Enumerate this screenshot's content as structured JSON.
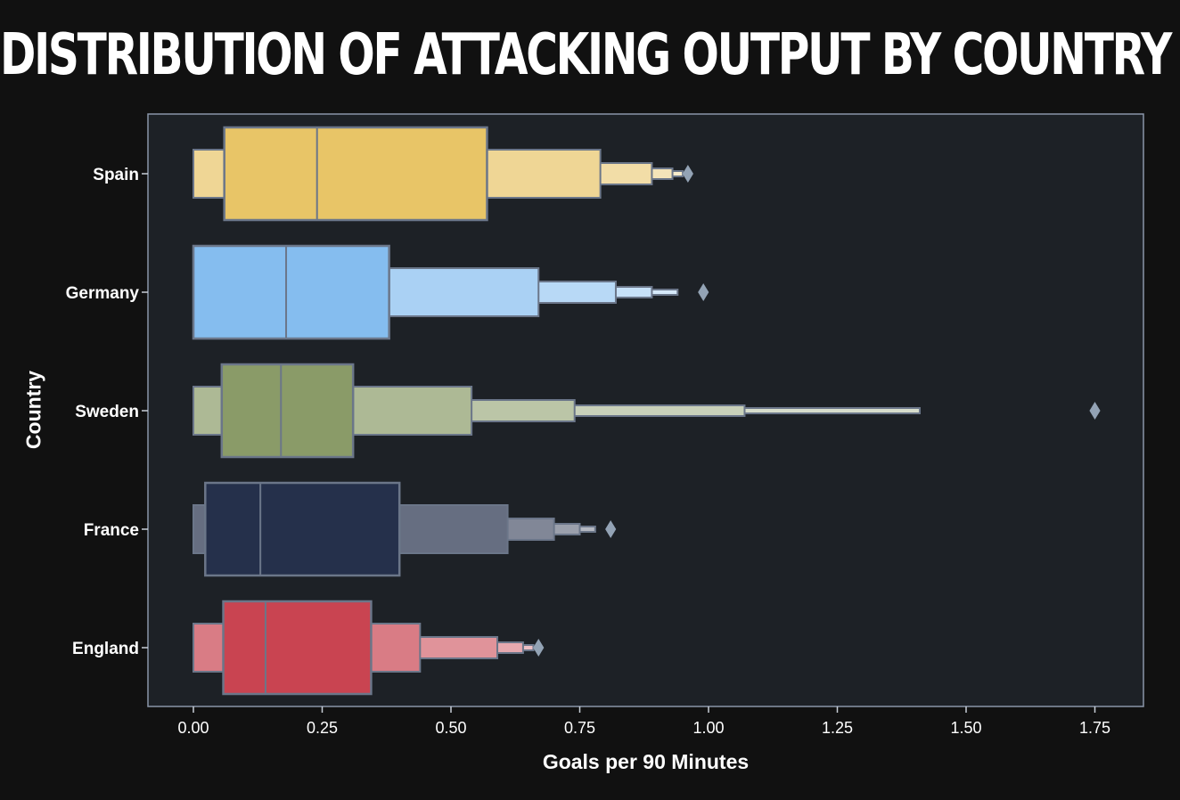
{
  "chart_data": {
    "type": "boxen",
    "title": "DISTRIBUTION OF ATTACKING OUTPUT BY COUNTRY",
    "xlabel": "Goals per 90 Minutes",
    "ylabel": "Country",
    "xlim": [
      -0.09,
      1.84
    ],
    "xticks": [
      "0.00",
      "0.25",
      "0.50",
      "0.75",
      "1.00",
      "1.25",
      "1.50",
      "1.75"
    ],
    "xtick_values": [
      0,
      0.25,
      0.5,
      0.75,
      1.0,
      1.25,
      1.5,
      1.75
    ],
    "grid": false,
    "categories": [
      "Spain",
      "Germany",
      "Sweden",
      "France",
      "England"
    ],
    "series": [
      {
        "category": "Spain",
        "color": "#e8c567",
        "median": 0.24,
        "levels": [
          [
            0.06,
            0.57
          ],
          [
            0.0,
            0.79
          ],
          [
            0.0,
            0.89
          ],
          [
            0.0,
            0.93
          ],
          [
            0.0,
            0.95
          ]
        ],
        "outliers": [
          0.96
        ]
      },
      {
        "category": "Germany",
        "color": "#85bdef",
        "median": 0.18,
        "levels": [
          [
            0.0,
            0.38
          ],
          [
            0.0,
            0.67
          ],
          [
            0.0,
            0.82
          ],
          [
            0.0,
            0.89
          ],
          [
            0.0,
            0.94
          ]
        ],
        "outliers": [
          0.99
        ]
      },
      {
        "category": "Sweden",
        "color": "#8a9b68",
        "median": 0.17,
        "levels": [
          [
            0.055,
            0.31
          ],
          [
            0.0,
            0.54
          ],
          [
            0.0,
            0.74
          ],
          [
            0.0,
            1.07
          ],
          [
            0.0,
            1.41
          ]
        ],
        "outliers": [
          1.75
        ]
      },
      {
        "category": "France",
        "color": "#25304b",
        "median": 0.13,
        "levels": [
          [
            0.023,
            0.4
          ],
          [
            0.0,
            0.61
          ],
          [
            0.0,
            0.7
          ],
          [
            0.0,
            0.75
          ],
          [
            0.0,
            0.78
          ]
        ],
        "outliers": [
          0.81
        ]
      },
      {
        "category": "England",
        "color": "#c94451",
        "median": 0.14,
        "levels": [
          [
            0.058,
            0.345
          ],
          [
            0.0,
            0.44
          ],
          [
            0.0,
            0.59
          ],
          [
            0.0,
            0.64
          ],
          [
            0.0,
            0.66
          ]
        ],
        "outliers": [
          0.67
        ]
      }
    ]
  }
}
